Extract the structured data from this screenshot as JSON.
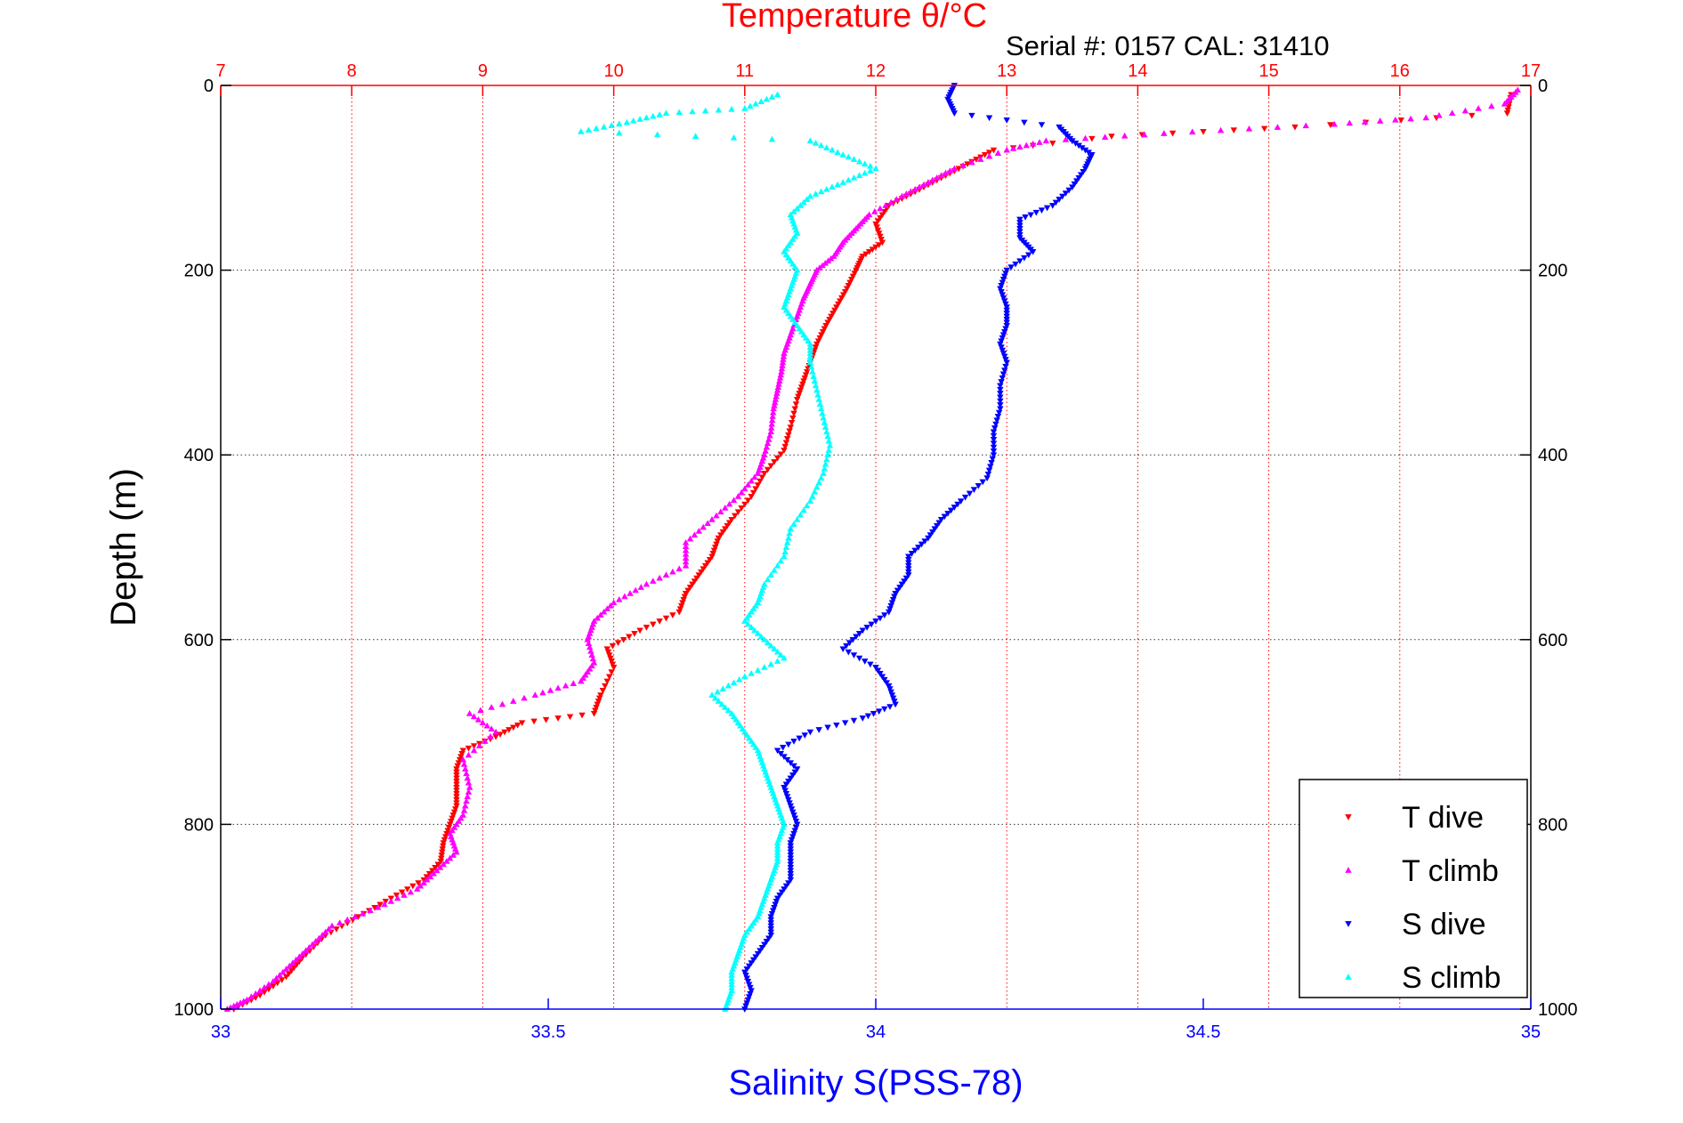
{
  "chart_data": {
    "type": "scatter",
    "title": "Temperature θ/°C",
    "subtitle": "Serial #: 0157  CAL: 31410",
    "xlabel": "Salinity S(PSS-78)",
    "ylabel": "Depth (m)",
    "x_top_ticks": [
      "7",
      "8",
      "9",
      "10",
      "11",
      "12",
      "13",
      "14",
      "15",
      "16",
      "17"
    ],
    "x_bottom_ticks": [
      "33",
      "33.5",
      "34",
      "34.5",
      "35"
    ],
    "y_ticks": [
      "0",
      "200",
      "400",
      "600",
      "800",
      "1000"
    ],
    "y_right_ticks": [
      "0",
      "200",
      "400",
      "600",
      "800",
      "1000"
    ],
    "xlim_temperature": [
      7,
      17
    ],
    "xlim_salinity": [
      33,
      35
    ],
    "ylim": [
      0,
      1000
    ],
    "y_reversed": true,
    "grid": true,
    "legend_position": "bottom-right",
    "colors": {
      "t_dive": "#ff0000",
      "t_climb": "#ff00ff",
      "s_dive": "#0000ff",
      "s_climb": "#00ffff"
    },
    "series": [
      {
        "name": "T dive",
        "axis": "temperature",
        "marker": "triangle-down",
        "points": [
          [
            16.85,
            10
          ],
          [
            16.82,
            30
          ],
          [
            15.2,
            45
          ],
          [
            13.8,
            55
          ],
          [
            12.9,
            70
          ],
          [
            12.7,
            85
          ],
          [
            12.5,
            100
          ],
          [
            12.3,
            115
          ],
          [
            12.1,
            130
          ],
          [
            12.0,
            150
          ],
          [
            12.05,
            170
          ],
          [
            11.9,
            185
          ],
          [
            11.85,
            200
          ],
          [
            11.78,
            220
          ],
          [
            11.7,
            240
          ],
          [
            11.62,
            260
          ],
          [
            11.55,
            280
          ],
          [
            11.5,
            300
          ],
          [
            11.45,
            320
          ],
          [
            11.4,
            340
          ],
          [
            11.35,
            370
          ],
          [
            11.3,
            395
          ],
          [
            11.15,
            420
          ],
          [
            11.05,
            445
          ],
          [
            10.9,
            470
          ],
          [
            10.8,
            490
          ],
          [
            10.75,
            510
          ],
          [
            10.65,
            530
          ],
          [
            10.55,
            550
          ],
          [
            10.5,
            570
          ],
          [
            10.2,
            590
          ],
          [
            9.95,
            610
          ],
          [
            10.0,
            630
          ],
          [
            9.9,
            660
          ],
          [
            9.85,
            680
          ],
          [
            9.3,
            690
          ],
          [
            9.1,
            705
          ],
          [
            8.85,
            720
          ],
          [
            8.8,
            740
          ],
          [
            8.8,
            760
          ],
          [
            8.8,
            780
          ],
          [
            8.75,
            800
          ],
          [
            8.7,
            820
          ],
          [
            8.68,
            840
          ],
          [
            8.55,
            860
          ],
          [
            8.3,
            880
          ],
          [
            8.05,
            900
          ],
          [
            7.8,
            920
          ],
          [
            7.62,
            945
          ],
          [
            7.5,
            965
          ],
          [
            7.3,
            985
          ],
          [
            7.1,
            1000
          ]
        ]
      },
      {
        "name": "T climb",
        "axis": "temperature",
        "marker": "triangle-up",
        "points": [
          [
            16.9,
            5
          ],
          [
            16.8,
            20
          ],
          [
            16.2,
            35
          ],
          [
            15.5,
            42
          ],
          [
            14.2,
            52
          ],
          [
            13.3,
            60
          ],
          [
            13.0,
            70
          ],
          [
            12.6,
            90
          ],
          [
            12.4,
            105
          ],
          [
            12.2,
            120
          ],
          [
            11.95,
            140
          ],
          [
            11.85,
            155
          ],
          [
            11.75,
            170
          ],
          [
            11.68,
            185
          ],
          [
            11.55,
            200
          ],
          [
            11.5,
            215
          ],
          [
            11.45,
            230
          ],
          [
            11.4,
            250
          ],
          [
            11.35,
            270
          ],
          [
            11.3,
            290
          ],
          [
            11.28,
            310
          ],
          [
            11.25,
            330
          ],
          [
            11.22,
            350
          ],
          [
            11.2,
            375
          ],
          [
            11.15,
            400
          ],
          [
            11.1,
            420
          ],
          [
            10.95,
            445
          ],
          [
            10.75,
            470
          ],
          [
            10.55,
            495
          ],
          [
            10.55,
            520
          ],
          [
            10.25,
            540
          ],
          [
            10.0,
            560
          ],
          [
            9.85,
            580
          ],
          [
            9.8,
            600
          ],
          [
            9.85,
            625
          ],
          [
            9.75,
            645
          ],
          [
            9.4,
            660
          ],
          [
            8.9,
            680
          ],
          [
            9.1,
            700
          ],
          [
            8.85,
            730
          ],
          [
            8.9,
            760
          ],
          [
            8.85,
            790
          ],
          [
            8.75,
            810
          ],
          [
            8.8,
            830
          ],
          [
            8.65,
            850
          ],
          [
            8.5,
            870
          ],
          [
            8.2,
            890
          ],
          [
            7.85,
            910
          ],
          [
            7.7,
            930
          ],
          [
            7.55,
            950
          ],
          [
            7.4,
            970
          ],
          [
            7.2,
            990
          ],
          [
            7.05,
            1000
          ]
        ]
      },
      {
        "name": "S dive",
        "axis": "salinity",
        "marker": "triangle-down",
        "points": [
          [
            34.12,
            0
          ],
          [
            34.11,
            15
          ],
          [
            34.12,
            30
          ],
          [
            34.28,
            45
          ],
          [
            34.3,
            60
          ],
          [
            34.33,
            75
          ],
          [
            34.32,
            90
          ],
          [
            34.3,
            110
          ],
          [
            34.27,
            130
          ],
          [
            34.22,
            145
          ],
          [
            34.22,
            165
          ],
          [
            34.24,
            180
          ],
          [
            34.2,
            200
          ],
          [
            34.19,
            220
          ],
          [
            34.2,
            240
          ],
          [
            34.2,
            260
          ],
          [
            34.19,
            280
          ],
          [
            34.2,
            300
          ],
          [
            34.19,
            325
          ],
          [
            34.19,
            350
          ],
          [
            34.18,
            375
          ],
          [
            34.18,
            400
          ],
          [
            34.17,
            425
          ],
          [
            34.13,
            450
          ],
          [
            34.1,
            470
          ],
          [
            34.08,
            490
          ],
          [
            34.05,
            510
          ],
          [
            34.05,
            530
          ],
          [
            34.03,
            550
          ],
          [
            34.02,
            570
          ],
          [
            33.98,
            590
          ],
          [
            33.95,
            610
          ],
          [
            34.0,
            630
          ],
          [
            34.02,
            650
          ],
          [
            34.03,
            670
          ],
          [
            33.98,
            685
          ],
          [
            33.9,
            700
          ],
          [
            33.85,
            720
          ],
          [
            33.88,
            740
          ],
          [
            33.86,
            760
          ],
          [
            33.87,
            780
          ],
          [
            33.88,
            800
          ],
          [
            33.87,
            820
          ],
          [
            33.87,
            840
          ],
          [
            33.87,
            860
          ],
          [
            33.85,
            880
          ],
          [
            33.84,
            900
          ],
          [
            33.84,
            920
          ],
          [
            33.82,
            940
          ],
          [
            33.8,
            960
          ],
          [
            33.81,
            980
          ],
          [
            33.8,
            1000
          ]
        ]
      },
      {
        "name": "S climb",
        "axis": "salinity",
        "marker": "triangle-up",
        "points": [
          [
            33.85,
            10
          ],
          [
            33.8,
            25
          ],
          [
            33.68,
            30
          ],
          [
            33.62,
            40
          ],
          [
            33.55,
            50
          ],
          [
            33.9,
            60
          ],
          [
            33.95,
            75
          ],
          [
            34.0,
            90
          ],
          [
            33.95,
            105
          ],
          [
            33.9,
            120
          ],
          [
            33.87,
            140
          ],
          [
            33.88,
            160
          ],
          [
            33.86,
            180
          ],
          [
            33.88,
            200
          ],
          [
            33.87,
            220
          ],
          [
            33.86,
            240
          ],
          [
            33.88,
            260
          ],
          [
            33.9,
            280
          ],
          [
            33.9,
            300
          ],
          [
            33.91,
            330
          ],
          [
            33.92,
            360
          ],
          [
            33.93,
            390
          ],
          [
            33.92,
            420
          ],
          [
            33.9,
            450
          ],
          [
            33.87,
            480
          ],
          [
            33.86,
            510
          ],
          [
            33.83,
            540
          ],
          [
            33.82,
            560
          ],
          [
            33.8,
            580
          ],
          [
            33.83,
            600
          ],
          [
            33.86,
            620
          ],
          [
            33.8,
            640
          ],
          [
            33.75,
            660
          ],
          [
            33.78,
            680
          ],
          [
            33.8,
            700
          ],
          [
            33.82,
            720
          ],
          [
            33.83,
            740
          ],
          [
            33.84,
            760
          ],
          [
            33.85,
            780
          ],
          [
            33.86,
            800
          ],
          [
            33.85,
            820
          ],
          [
            33.85,
            840
          ],
          [
            33.84,
            860
          ],
          [
            33.83,
            880
          ],
          [
            33.82,
            900
          ],
          [
            33.8,
            920
          ],
          [
            33.79,
            940
          ],
          [
            33.78,
            960
          ],
          [
            33.78,
            980
          ],
          [
            33.77,
            1000
          ]
        ]
      }
    ]
  }
}
